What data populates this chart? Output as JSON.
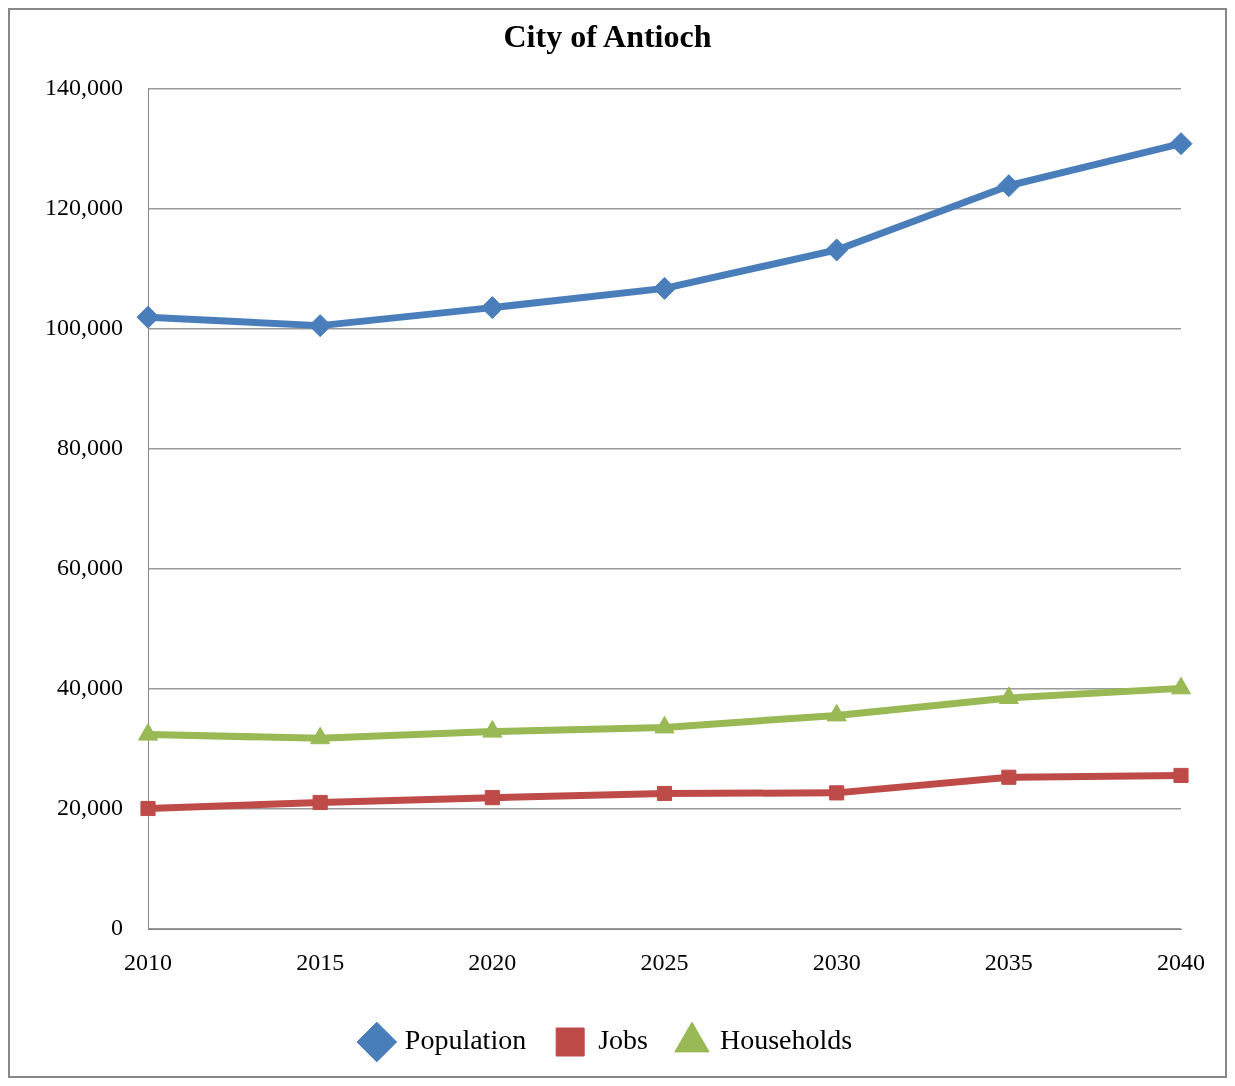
{
  "chart_data": {
    "type": "line",
    "title": "City of Antioch",
    "categories": [
      "2010",
      "2015",
      "2020",
      "2025",
      "2030",
      "2035",
      "2040"
    ],
    "series": [
      {
        "name": "Population",
        "color": "#4a7ebb",
        "marker": "diamond",
        "values": [
          101900,
          100500,
          103500,
          106700,
          113100,
          123800,
          130800
        ]
      },
      {
        "name": "Jobs",
        "color": "#be4b48",
        "marker": "square",
        "values": [
          20100,
          21100,
          21900,
          22600,
          22700,
          25300,
          25600
        ]
      },
      {
        "name": "Households",
        "color": "#98b954",
        "marker": "triangle",
        "values": [
          32400,
          31800,
          32900,
          33600,
          35600,
          38500,
          40100
        ]
      }
    ],
    "ylim": [
      0,
      140000
    ],
    "yticks": [
      0,
      {
        "value": 20000,
        "label": "20,000"
      },
      {
        "value": 40000,
        "label": "40,000"
      },
      {
        "value": 60000,
        "label": "60,000"
      },
      {
        "value": 80000,
        "label": "80,000"
      },
      {
        "value": 100000,
        "label": "100,000"
      },
      {
        "value": 120000,
        "label": "120,000"
      },
      {
        "value": 140000,
        "label": "140,000"
      }
    ],
    "grid": "y",
    "legend": "bottom",
    "line_style": "solid"
  }
}
